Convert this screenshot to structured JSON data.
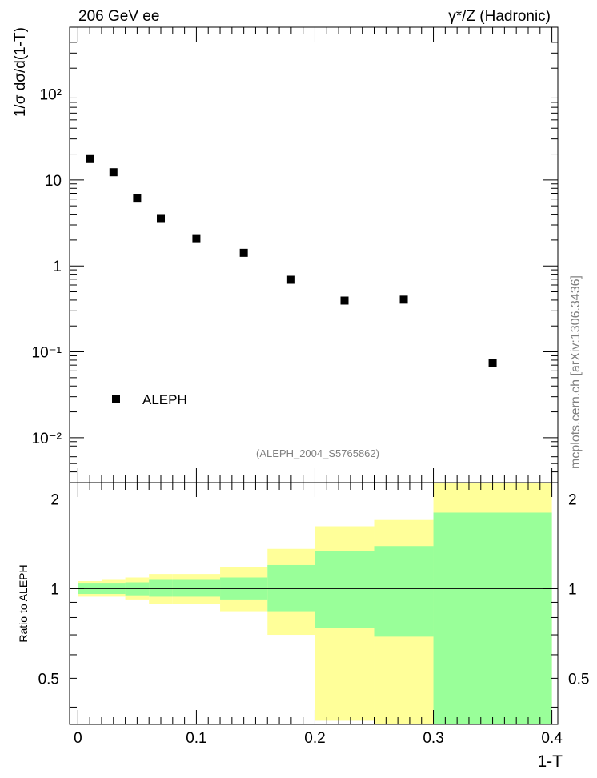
{
  "header": {
    "left_label": "206 GeV ee",
    "right_label": "γ*/Z (Hadronic)"
  },
  "side_label": "mcplots.cern.ch [arXiv:1306.3436]",
  "analysis_id": "(ALEPH_2004_S5765862)",
  "colors": {
    "data_marker": "#000000",
    "band_outer": "#ffff99",
    "band_inner": "#99ff99",
    "ref_line": "#000000"
  },
  "chart_data": [
    {
      "type": "scatter",
      "ylabel": "1/σ  dσ/d(1-T)",
      "yscale": "log",
      "ylim": [
        0.003,
        600
      ],
      "xlim": [
        -0.007,
        0.405
      ],
      "ytick_labels": {
        "major_100": "10²",
        "major_10": "10",
        "major_1": "1",
        "major_0_1": "10⁻¹",
        "major_0_01": "10⁻²"
      },
      "legend": {
        "position": "bottom-left",
        "entries": [
          "ALEPH"
        ]
      },
      "series": [
        {
          "name": "ALEPH",
          "x": [
            0.01,
            0.03,
            0.05,
            0.07,
            0.1,
            0.14,
            0.18,
            0.225,
            0.275,
            0.35
          ],
          "y": [
            17.5,
            12.3,
            6.2,
            3.6,
            2.1,
            1.42,
            0.69,
            0.395,
            0.405,
            0.074
          ]
        }
      ]
    },
    {
      "type": "area",
      "ylabel": "Ratio to ALEPH",
      "xlabel": "1-T",
      "xlim": [
        -0.007,
        0.405
      ],
      "ylim": [
        0.35,
        2.27
      ],
      "x_ticks": [
        "0",
        "0.1",
        "0.2",
        "0.3",
        "0.4"
      ],
      "y_ticks": [
        "0.5",
        "1",
        "2"
      ],
      "reference_line": 1,
      "bins": [
        {
          "lo": 0.0,
          "hi": 0.02,
          "outer": [
            0.94,
            1.06
          ],
          "inner": [
            0.96,
            1.04
          ]
        },
        {
          "lo": 0.02,
          "hi": 0.04,
          "outer": [
            0.94,
            1.07
          ],
          "inner": [
            0.96,
            1.04
          ]
        },
        {
          "lo": 0.04,
          "hi": 0.06,
          "outer": [
            0.92,
            1.09
          ],
          "inner": [
            0.95,
            1.05
          ]
        },
        {
          "lo": 0.06,
          "hi": 0.08,
          "outer": [
            0.89,
            1.12
          ],
          "inner": [
            0.94,
            1.07
          ]
        },
        {
          "lo": 0.08,
          "hi": 0.12,
          "outer": [
            0.89,
            1.12
          ],
          "inner": [
            0.94,
            1.07
          ]
        },
        {
          "lo": 0.12,
          "hi": 0.16,
          "outer": [
            0.84,
            1.18
          ],
          "inner": [
            0.92,
            1.09
          ]
        },
        {
          "lo": 0.16,
          "hi": 0.2,
          "outer": [
            0.7,
            1.36
          ],
          "inner": [
            0.84,
            1.2
          ]
        },
        {
          "lo": 0.2,
          "hi": 0.25,
          "outer": [
            0.36,
            1.62
          ],
          "inner": [
            0.74,
            1.34
          ]
        },
        {
          "lo": 0.25,
          "hi": 0.3,
          "outer": [
            0.35,
            1.7
          ],
          "inner": [
            0.69,
            1.39
          ]
        },
        {
          "lo": 0.3,
          "hi": 0.4,
          "outer": [
            0.35,
            2.27
          ],
          "inner": [
            0.35,
            1.8
          ]
        }
      ]
    }
  ]
}
